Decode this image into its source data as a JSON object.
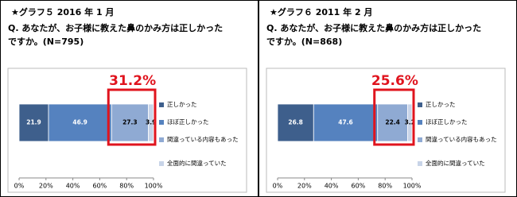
{
  "chart_data": [
    {
      "type": "stacked-bar",
      "title": "★グラフ５ 2016 年 1 月",
      "subtitle": [
        "Q. あなたが、お子様に教えた鼻のかみ方は正しかった",
        "ですか。(N=795)"
      ],
      "annotation": "31.2%",
      "series": [
        {
          "name": "正しかった",
          "color": "#3e5f8c",
          "values": [
            21.9
          ]
        },
        {
          "name": "ほぼ正しかった",
          "color": "#5582bf",
          "values": [
            46.9
          ]
        },
        {
          "name": "間違っている内容もあった",
          "color": "#8faad3",
          "values": [
            27.3
          ]
        },
        {
          "name": "全面的に間違っていた",
          "color": "#c8d4e8",
          "values": [
            3.9
          ]
        }
      ],
      "xlim": [
        0,
        100
      ],
      "xticks": [
        {
          "value": 0,
          "label": "0%"
        },
        {
          "value": 20,
          "label": "20%"
        },
        {
          "value": 40,
          "label": "40%"
        },
        {
          "value": 60,
          "label": "60%"
        },
        {
          "value": 80,
          "label": "80%"
        },
        {
          "value": 100,
          "label": "100%"
        }
      ]
    },
    {
      "type": "stacked-bar",
      "title": "★グラフ６ 2011 年 2 月",
      "subtitle": [
        "Q. あなたが、お子様に教えた鼻のかみ方は正しかった",
        "ですか。(N=868)"
      ],
      "annotation": "25.6%",
      "series": [
        {
          "name": "正しかった",
          "color": "#3e5f8c",
          "values": [
            26.8
          ]
        },
        {
          "name": "ほぼ正しかった",
          "color": "#5582bf",
          "values": [
            47.6
          ]
        },
        {
          "name": "間違っている内容もあった",
          "color": "#8faad3",
          "values": [
            22.4
          ]
        },
        {
          "name": "全面的に間違っていた",
          "color": "#c8d4e8",
          "values": [
            3.2
          ]
        }
      ],
      "xlim": [
        0,
        100
      ],
      "xticks": [
        {
          "value": 0,
          "label": "0%"
        },
        {
          "value": 20,
          "label": "20%"
        },
        {
          "value": 40,
          "label": "40%"
        },
        {
          "value": 60,
          "label": "60%"
        },
        {
          "value": 80,
          "label": "80%"
        },
        {
          "value": 100,
          "label": "100%"
        }
      ]
    }
  ]
}
